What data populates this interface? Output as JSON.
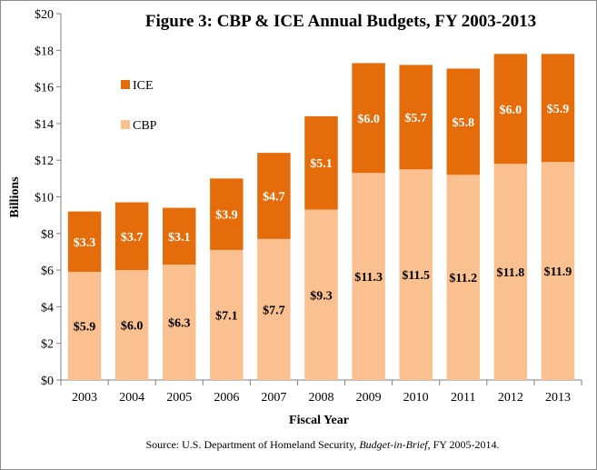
{
  "chart_data": {
    "type": "bar",
    "stacked": true,
    "title": "Figure 3: CBP & ICE Annual  Budgets, FY 2003-2013",
    "xlabel": "Fiscal Year",
    "ylabel": "Billions",
    "ylim": [
      0,
      20
    ],
    "yticks": [
      "$0",
      "$2",
      "$4",
      "$6",
      "$8",
      "$10",
      "$12",
      "$14",
      "$16",
      "$18",
      "$20"
    ],
    "categories": [
      "2003",
      "2004",
      "2005",
      "2006",
      "2007",
      "2008",
      "2009",
      "2010",
      "2011",
      "2012",
      "2013"
    ],
    "series": [
      {
        "name": "CBP",
        "color": "#fac090",
        "values": [
          5.9,
          6.0,
          6.3,
          7.1,
          7.7,
          9.3,
          11.3,
          11.5,
          11.2,
          11.8,
          11.9
        ],
        "labels": [
          "$5.9",
          "$6.0",
          "$6.3",
          "$7.1",
          "$7.7",
          "$9.3",
          "$11.3",
          "$11.5",
          "$11.2",
          "$11.8",
          "$11.9"
        ]
      },
      {
        "name": "ICE",
        "color": "#e46c0a",
        "values": [
          3.3,
          3.7,
          3.1,
          3.9,
          4.7,
          5.1,
          6.0,
          5.7,
          5.8,
          6.0,
          5.9
        ],
        "labels": [
          "$3.3",
          "$3.7",
          "$3.1",
          "$3.9",
          "$4.7",
          "$5.1",
          "$6.0",
          "$5.7",
          "$5.8",
          "$6.0",
          "$5.9"
        ]
      }
    ],
    "legend": [
      "ICE",
      "CBP"
    ],
    "legend_position": "top-left",
    "grid": false,
    "source_parts": {
      "prefix": "Source: U.S. Department of Homeland Security, ",
      "italic": "Budget-in-Brief",
      "suffix": ", FY  2005-2014."
    }
  }
}
